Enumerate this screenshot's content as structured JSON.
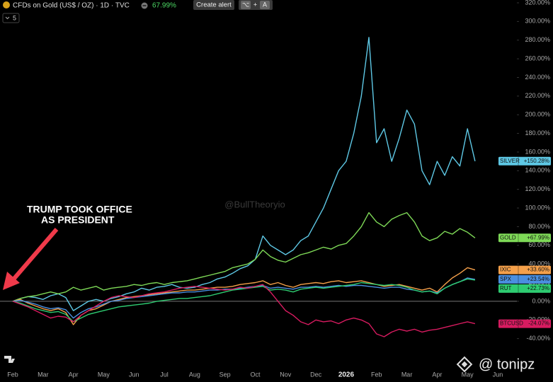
{
  "toolbar": {
    "symbol": "CFDs on Gold (US$ / OZ) · 1D · TVC",
    "change": "67.99%",
    "alert_button": "Create alert",
    "shortcut_keys": [
      "⌥",
      "+",
      "A"
    ],
    "interval_menu": "5"
  },
  "chart_data": {
    "type": "line",
    "annotation": [
      "TRUMP TOOK OFFICE",
      "AS PRESIDENT"
    ],
    "watermark": "@BullTheoryio",
    "credit": "@ tonipz",
    "categories": [
      "Feb",
      null,
      null,
      null,
      "Mar",
      null,
      null,
      null,
      "Apr",
      null,
      null,
      null,
      "May",
      null,
      null,
      null,
      "Jun",
      null,
      null,
      null,
      "Jul",
      null,
      null,
      null,
      "Aug",
      null,
      null,
      null,
      "Sep",
      null,
      null,
      null,
      "Oct",
      null,
      null,
      null,
      "Nov",
      null,
      null,
      null,
      "Dec",
      null,
      null,
      null,
      "2026",
      null,
      null,
      null,
      "Feb",
      null,
      null,
      null,
      "Mar",
      null,
      null,
      null,
      "Apr",
      null,
      null,
      null,
      "May",
      null,
      null,
      null,
      "Jun"
    ],
    "ylim": [
      -60,
      320
    ],
    "yticks": [
      {
        "value": -40,
        "label": "-40.00%"
      },
      {
        "value": -20,
        "label": "-20.00%"
      },
      {
        "value": 0,
        "label": "0.00%"
      },
      {
        "value": 20,
        "label": "20.00%"
      },
      {
        "value": 40,
        "label": "40.00%"
      },
      {
        "value": 60,
        "label": "60.00%"
      },
      {
        "value": 80,
        "label": "80.00%"
      },
      {
        "value": 100,
        "label": "100.00%"
      },
      {
        "value": 120,
        "label": "120.00%"
      },
      {
        "value": 140,
        "label": "140.00%"
      },
      {
        "value": 160,
        "label": "160.00%"
      },
      {
        "value": 180,
        "label": "180.00%"
      },
      {
        "value": 200,
        "label": "200.00%"
      },
      {
        "value": 220,
        "label": "220.00%"
      },
      {
        "value": 240,
        "label": "240.00%"
      },
      {
        "value": 260,
        "label": "260.00%"
      },
      {
        "value": 280,
        "label": "280.00%"
      },
      {
        "value": 300,
        "label": "300.00%"
      },
      {
        "value": 320,
        "label": "320.00%"
      }
    ],
    "reference_line": 0,
    "grid": false,
    "series": [
      {
        "name": "SILVER",
        "color": "#5ec8e5",
        "values": [
          0,
          3,
          5,
          4,
          2,
          6,
          8,
          4,
          -10,
          -5,
          0,
          2,
          0,
          3,
          5,
          8,
          10,
          14,
          12,
          15,
          16,
          18,
          15,
          14,
          15,
          18,
          20,
          24,
          26,
          30,
          35,
          38,
          45,
          70,
          60,
          55,
          50,
          55,
          65,
          70,
          85,
          100,
          120,
          140,
          150,
          180,
          220,
          283,
          170,
          185,
          150,
          175,
          205,
          190,
          140,
          125,
          150,
          135,
          155,
          145,
          185,
          150.28,
          null,
          null,
          null
        ],
        "value_labels": [
          null,
          null,
          null,
          null,
          null,
          null,
          null,
          null,
          null,
          null,
          null,
          null,
          null,
          null,
          null,
          null,
          null,
          null,
          null,
          null,
          null,
          null,
          null,
          null,
          null,
          null,
          null,
          null,
          null,
          null,
          null,
          null,
          null,
          null,
          null,
          null,
          null,
          null,
          null,
          null,
          null,
          null,
          null,
          null,
          null,
          null,
          null,
          null,
          null,
          null,
          null,
          null,
          null,
          null,
          null,
          null,
          null,
          null,
          null,
          null,
          null,
          "+150.28%",
          null,
          null,
          null
        ]
      },
      {
        "name": "GOLD",
        "color": "#7ed957",
        "values": [
          0,
          3,
          5,
          6,
          8,
          10,
          8,
          10,
          15,
          12,
          14,
          16,
          12,
          14,
          15,
          16,
          18,
          17,
          19,
          20,
          18,
          20,
          21,
          22,
          24,
          26,
          28,
          30,
          32,
          36,
          38,
          40,
          45,
          55,
          48,
          44,
          42,
          46,
          50,
          52,
          55,
          58,
          56,
          60,
          62,
          70,
          80,
          95,
          85,
          80,
          88,
          92,
          95,
          85,
          70,
          65,
          68,
          75,
          72,
          78,
          74,
          67.99,
          null,
          null,
          null
        ],
        "value_labels": [
          null,
          null,
          null,
          null,
          null,
          null,
          null,
          null,
          null,
          null,
          null,
          null,
          null,
          null,
          null,
          null,
          null,
          null,
          null,
          null,
          null,
          null,
          null,
          null,
          null,
          null,
          null,
          null,
          null,
          null,
          null,
          null,
          null,
          null,
          null,
          null,
          null,
          null,
          null,
          null,
          null,
          null,
          null,
          null,
          null,
          null,
          null,
          null,
          null,
          null,
          null,
          null,
          null,
          null,
          null,
          null,
          null,
          null,
          null,
          null,
          null,
          "+67.99%",
          null,
          null,
          null
        ]
      },
      {
        "name": "IXIC",
        "color": "#f5a04a",
        "values": [
          0,
          2,
          -2,
          -5,
          -8,
          -10,
          -8,
          -12,
          -25,
          -15,
          -10,
          -8,
          -4,
          0,
          2,
          4,
          5,
          6,
          7,
          8,
          9,
          10,
          11,
          12,
          12,
          13,
          14,
          15,
          15,
          16,
          18,
          19,
          20,
          22,
          18,
          20,
          17,
          15,
          18,
          19,
          20,
          19,
          21,
          22,
          20,
          21,
          22,
          20,
          18,
          16,
          17,
          18,
          16,
          14,
          12,
          14,
          10,
          18,
          25,
          30,
          36,
          33.6,
          null,
          null,
          null
        ],
        "value_labels": [
          null,
          null,
          null,
          null,
          null,
          null,
          null,
          null,
          null,
          null,
          null,
          null,
          null,
          null,
          null,
          null,
          null,
          null,
          null,
          null,
          null,
          null,
          null,
          null,
          null,
          null,
          null,
          null,
          null,
          null,
          null,
          null,
          null,
          null,
          null,
          null,
          null,
          null,
          null,
          null,
          null,
          null,
          null,
          null,
          null,
          null,
          null,
          null,
          null,
          null,
          null,
          null,
          null,
          null,
          null,
          null,
          null,
          null,
          null,
          null,
          null,
          "+33.60%",
          null,
          null,
          null
        ]
      },
      {
        "name": "SPX",
        "color": "#4a8fe0",
        "values": [
          0,
          1,
          -1,
          -3,
          -6,
          -8,
          -7,
          -9,
          -18,
          -12,
          -8,
          -6,
          -3,
          0,
          1,
          3,
          4,
          5,
          6,
          7,
          8,
          9,
          9,
          10,
          10,
          11,
          12,
          12,
          13,
          13,
          14,
          15,
          16,
          17,
          14,
          15,
          14,
          13,
          15,
          15,
          16,
          15,
          16,
          17,
          16,
          17,
          17,
          16,
          15,
          14,
          15,
          15,
          13,
          12,
          10,
          11,
          9,
          14,
          18,
          21,
          25,
          23.54,
          null,
          null,
          null
        ],
        "value_labels": [
          null,
          null,
          null,
          null,
          null,
          null,
          null,
          null,
          null,
          null,
          null,
          null,
          null,
          null,
          null,
          null,
          null,
          null,
          null,
          null,
          null,
          null,
          null,
          null,
          null,
          null,
          null,
          null,
          null,
          null,
          null,
          null,
          null,
          null,
          null,
          null,
          null,
          null,
          null,
          null,
          null,
          null,
          null,
          null,
          null,
          null,
          null,
          null,
          null,
          null,
          null,
          null,
          null,
          null,
          null,
          null,
          null,
          null,
          null,
          null,
          null,
          "+23.54%",
          null,
          null,
          null
        ]
      },
      {
        "name": "RUT",
        "color": "#2ecc71",
        "values": [
          0,
          -2,
          -5,
          -8,
          -10,
          -12,
          -11,
          -14,
          -22,
          -18,
          -14,
          -12,
          -10,
          -8,
          -6,
          -5,
          -4,
          -3,
          -2,
          0,
          1,
          2,
          3,
          3,
          4,
          5,
          6,
          8,
          10,
          12,
          13,
          14,
          15,
          16,
          12,
          13,
          12,
          10,
          13,
          14,
          15,
          14,
          15,
          16,
          17,
          18,
          20,
          19,
          18,
          17,
          18,
          17,
          15,
          12,
          10,
          11,
          8,
          14,
          18,
          21,
          24,
          22.73,
          null,
          null,
          null
        ],
        "value_labels": [
          null,
          null,
          null,
          null,
          null,
          null,
          null,
          null,
          null,
          null,
          null,
          null,
          null,
          null,
          null,
          null,
          null,
          null,
          null,
          null,
          null,
          null,
          null,
          null,
          null,
          null,
          null,
          null,
          null,
          null,
          null,
          null,
          null,
          null,
          null,
          null,
          null,
          null,
          null,
          null,
          null,
          null,
          null,
          null,
          null,
          null,
          null,
          null,
          null,
          null,
          null,
          null,
          null,
          null,
          null,
          null,
          null,
          null,
          null,
          null,
          null,
          "+22.73%",
          null,
          null,
          null
        ]
      },
      {
        "name": "BTCUSD",
        "color": "#d81b60",
        "values": [
          0,
          -3,
          -6,
          -10,
          -14,
          -18,
          -16,
          -17,
          -22,
          -15,
          -10,
          -5,
          0,
          4,
          6,
          5,
          4,
          6,
          8,
          9,
          10,
          12,
          14,
          15,
          16,
          15,
          14,
          13,
          12,
          13,
          15,
          14,
          16,
          18,
          10,
          0,
          -10,
          -15,
          -22,
          -25,
          -20,
          -22,
          -21,
          -24,
          -20,
          -18,
          -20,
          -24,
          -35,
          -38,
          -33,
          -30,
          -32,
          -30,
          -33,
          -31,
          -30,
          -28,
          -26,
          -24,
          -22,
          -24.07,
          null,
          null,
          null
        ],
        "value_labels": [
          null,
          null,
          null,
          null,
          null,
          null,
          null,
          null,
          null,
          null,
          null,
          null,
          null,
          null,
          null,
          null,
          null,
          null,
          null,
          null,
          null,
          null,
          null,
          null,
          null,
          null,
          null,
          null,
          null,
          null,
          null,
          null,
          null,
          null,
          null,
          null,
          null,
          null,
          null,
          null,
          null,
          null,
          null,
          null,
          null,
          null,
          null,
          null,
          null,
          null,
          null,
          null,
          null,
          null,
          null,
          null,
          null,
          null,
          null,
          null,
          null,
          "-24.07%",
          null,
          null,
          null
        ]
      }
    ]
  }
}
